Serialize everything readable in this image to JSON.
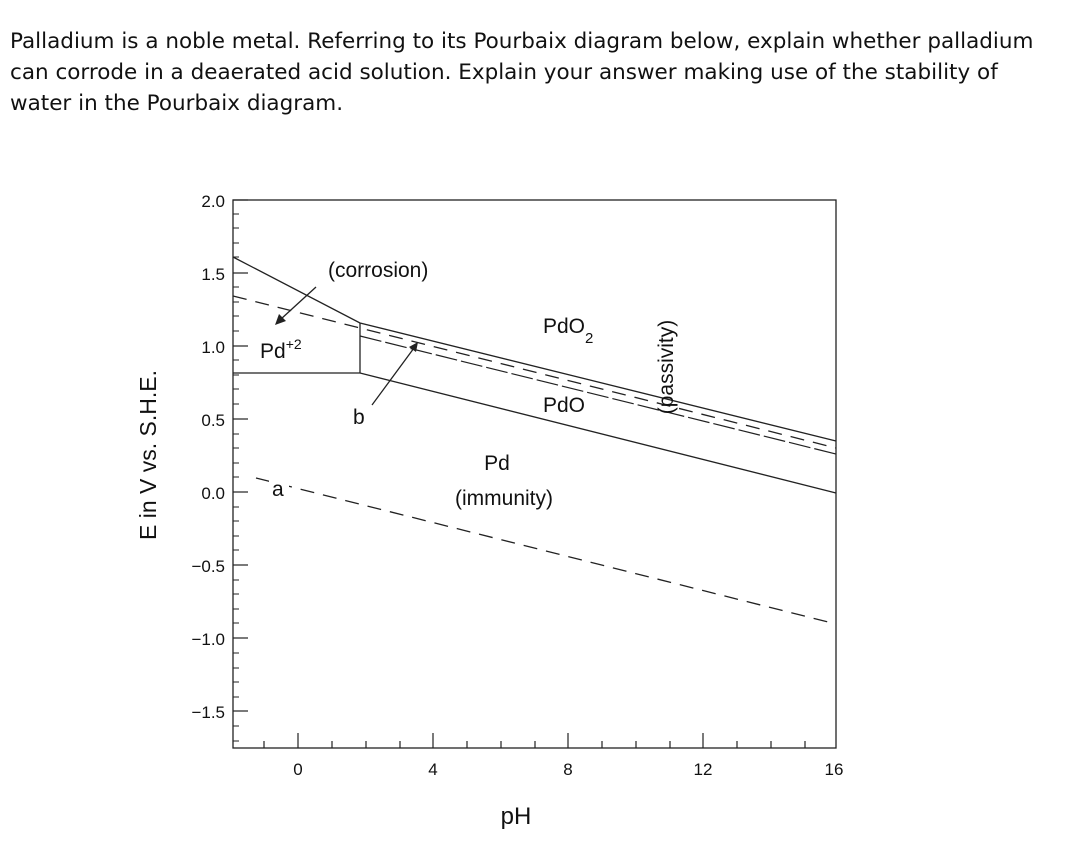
{
  "question": "Palladium is a noble metal. Referring to its Pourbaix diagram below, explain whether palladium can corrode in a deaerated acid solution. Explain your answer making use of the stability of water in the Pourbaix diagram.",
  "diagram": {
    "xlabel": "pH",
    "ylabel": "E in V vs. S.H.E.",
    "x_ticks": [
      "0",
      "4",
      "8",
      "12",
      "16"
    ],
    "y_ticks": [
      "2.0",
      "1.5",
      "1.0",
      "0.5",
      "0.0",
      "−0.5",
      "−1.0",
      "−1.5"
    ],
    "region_labels": {
      "corrosion": "(corrosion)",
      "pd2_base": "Pd",
      "pd2_sup": "+2",
      "pdo2_base": "PdO",
      "pdo2_sub": "2",
      "pdo": "PdO",
      "pd": "Pd",
      "immunity": "(immunity)",
      "passivity": "(passivity)"
    },
    "line_labels": {
      "a": "a",
      "b": "b"
    },
    "colors": {
      "line": "#222222",
      "text": "#111111"
    }
  }
}
